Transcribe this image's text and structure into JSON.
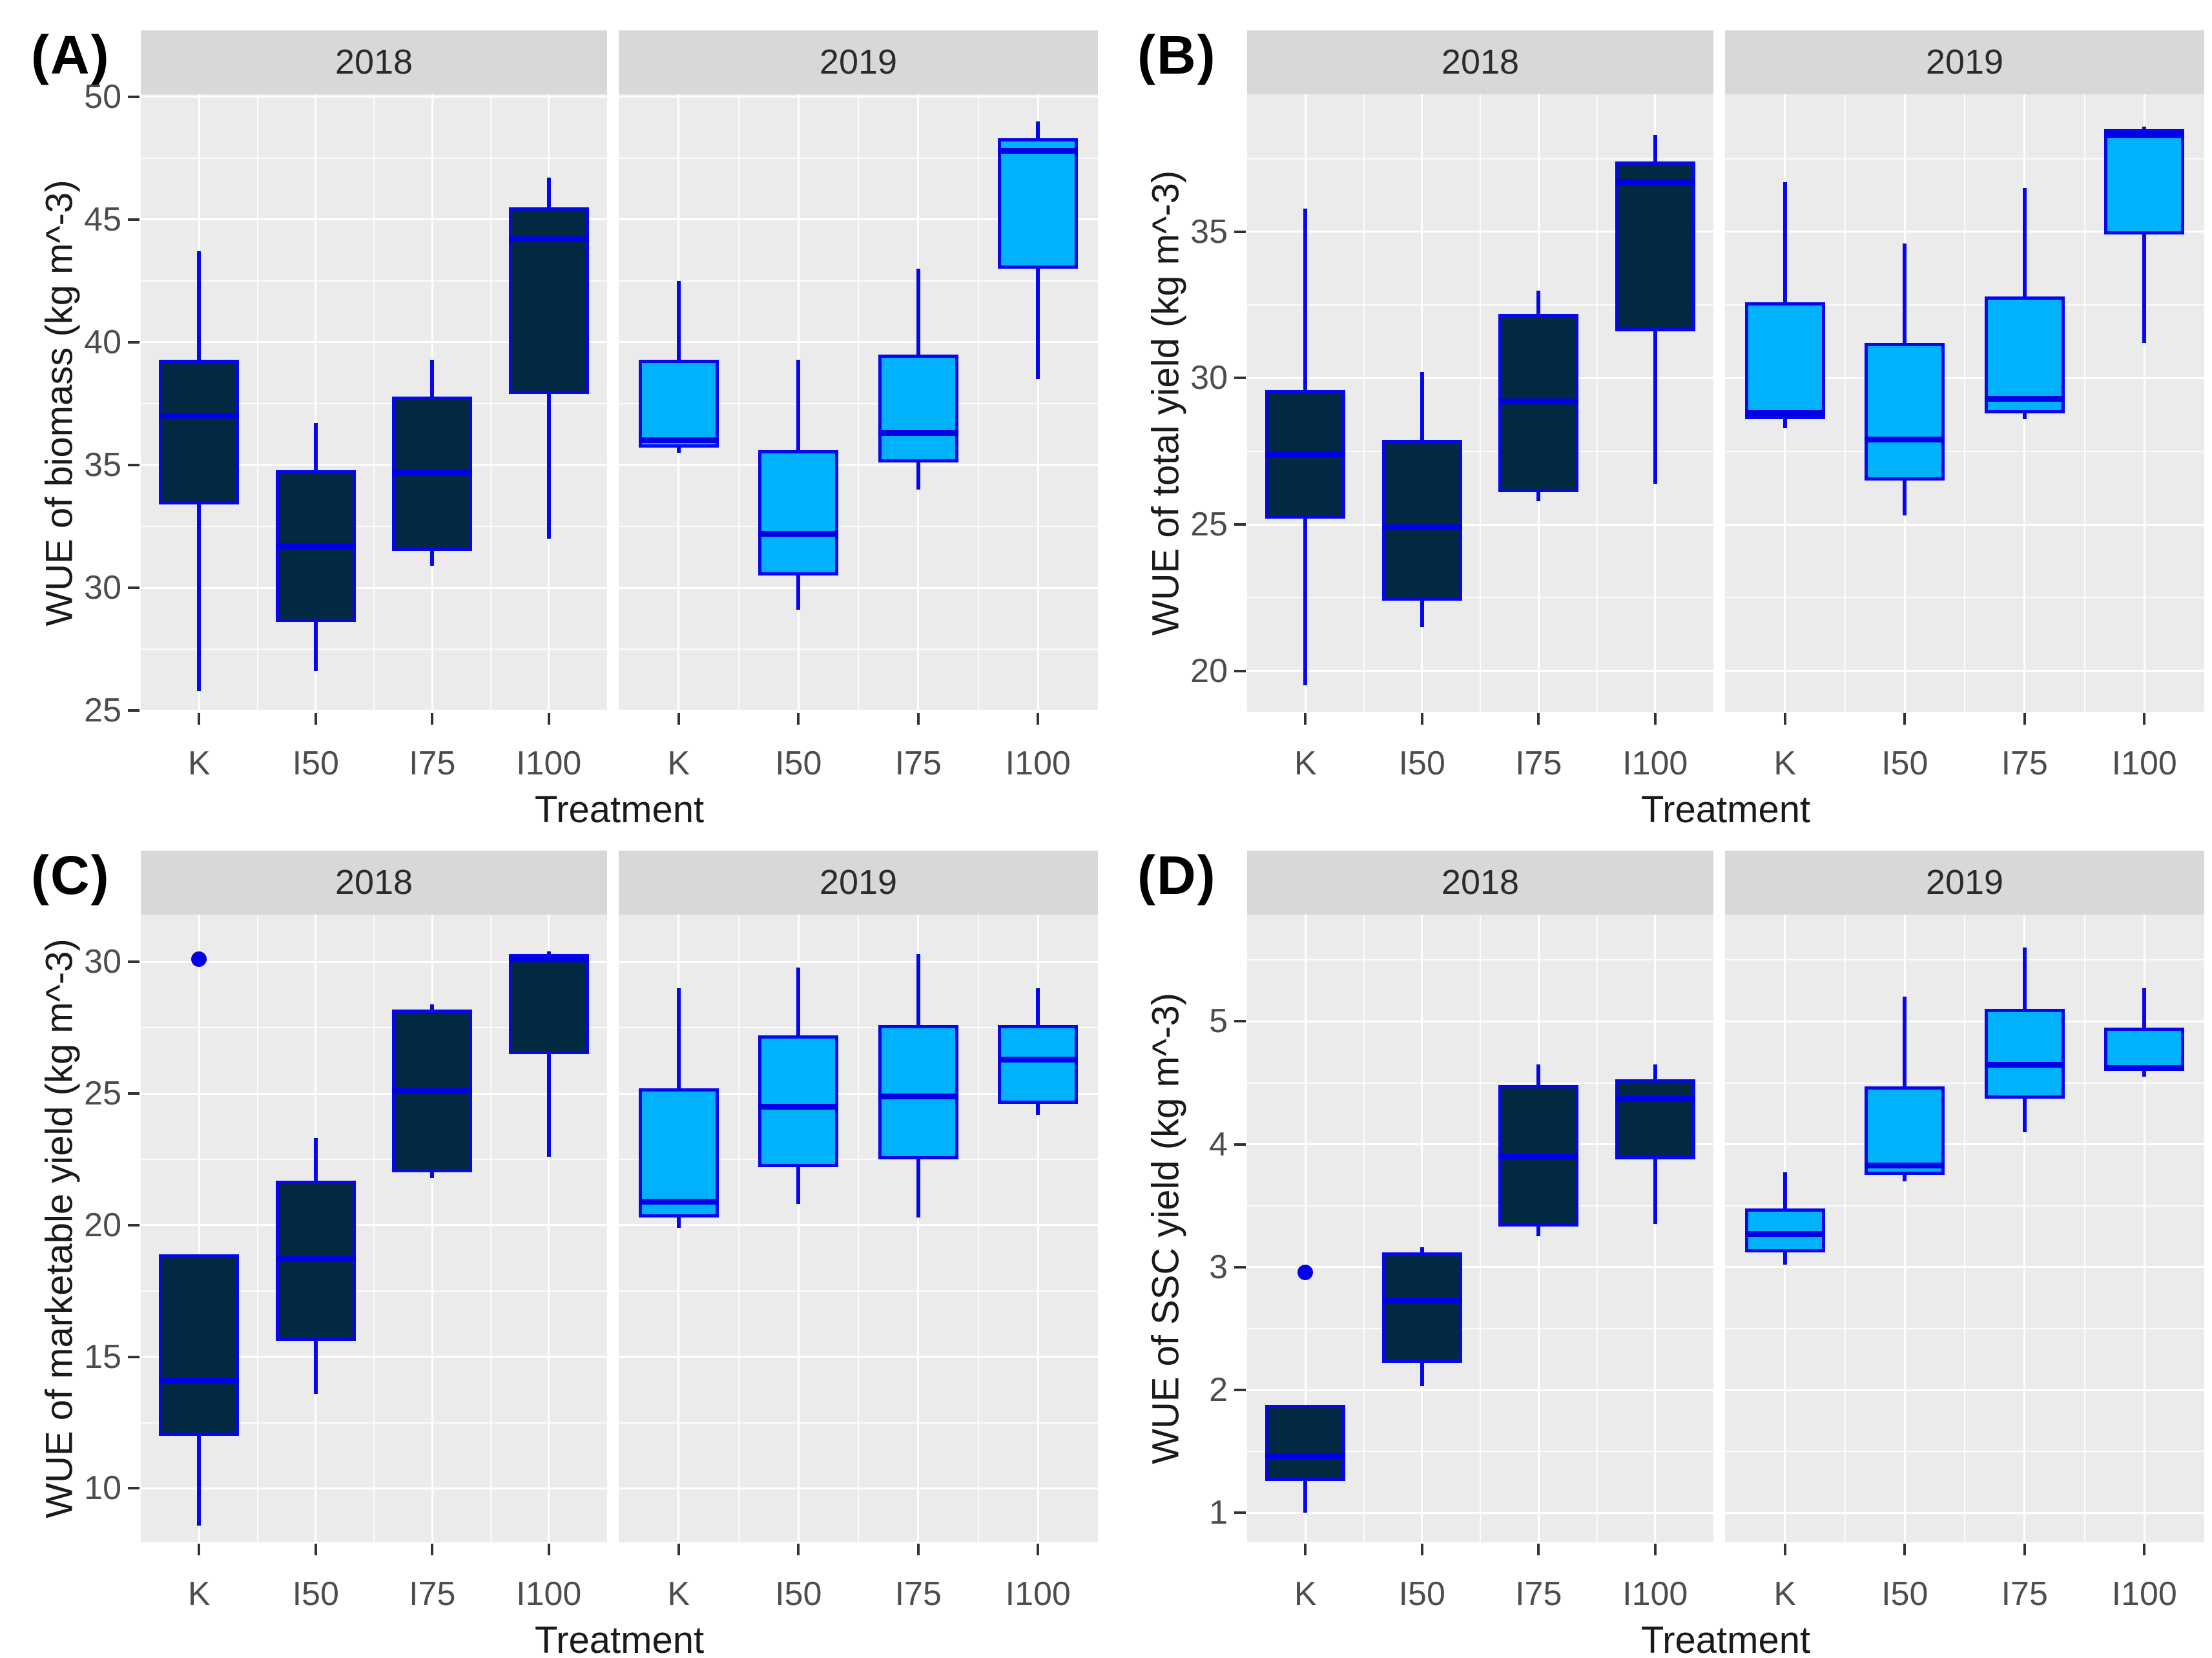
{
  "figure": {
    "x_axis_title": "Treatment",
    "facet_years": [
      "2018",
      "2019"
    ],
    "treatments": [
      "K",
      "I50",
      "I75",
      "I100"
    ]
  },
  "colors": {
    "fill_2018": "#012a42",
    "fill_2019": "#00b1fb",
    "box_border": "#0707ee",
    "median": "#0000e8",
    "outlier": "#0000e8",
    "panel_bg": "#ebebeb",
    "strip_bg": "#d8d8d8",
    "grid": "#ffffff"
  },
  "chart_data": [
    {
      "type": "boxplot",
      "letter": "(A)",
      "ylabel": "WUE of biomass (kg m^-3)",
      "xlabel": "Treatment",
      "yticks": [
        25,
        30,
        35,
        40,
        45,
        50
      ],
      "ylim": [
        24.95,
        50.1
      ],
      "categories": [
        "K",
        "I50",
        "I75",
        "I100"
      ],
      "facets": [
        {
          "year": "2018",
          "fill": "fill_2018",
          "boxes": [
            {
              "treatment": "K",
              "whisker_low": 25.8,
              "q1": 33.4,
              "median": 37.0,
              "q3": 39.3,
              "whisker_high": 43.7,
              "outliers": []
            },
            {
              "treatment": "I50",
              "whisker_low": 26.6,
              "q1": 28.6,
              "median": 31.7,
              "q3": 34.8,
              "whisker_high": 36.7,
              "outliers": []
            },
            {
              "treatment": "I75",
              "whisker_low": 30.9,
              "q1": 31.5,
              "median": 34.7,
              "q3": 37.8,
              "whisker_high": 39.3,
              "outliers": []
            },
            {
              "treatment": "I100",
              "whisker_low": 32.0,
              "q1": 37.9,
              "median": 44.2,
              "q3": 45.5,
              "whisker_high": 46.7,
              "outliers": []
            }
          ]
        },
        {
          "year": "2019",
          "fill": "fill_2019",
          "boxes": [
            {
              "treatment": "K",
              "whisker_low": 35.5,
              "q1": 35.7,
              "median": 36.0,
              "q3": 39.3,
              "whisker_high": 42.5,
              "outliers": []
            },
            {
              "treatment": "I50",
              "whisker_low": 29.1,
              "q1": 30.5,
              "median": 32.2,
              "q3": 35.6,
              "whisker_high": 39.3,
              "outliers": []
            },
            {
              "treatment": "I75",
              "whisker_low": 34.0,
              "q1": 35.1,
              "median": 36.3,
              "q3": 39.5,
              "whisker_high": 43.0,
              "outliers": []
            },
            {
              "treatment": "I100",
              "whisker_low": 38.5,
              "q1": 43.0,
              "median": 47.8,
              "q3": 48.3,
              "whisker_high": 49.0,
              "outliers": []
            }
          ]
        }
      ]
    },
    {
      "type": "boxplot",
      "letter": "(B)",
      "ylabel": "WUE of total yield (kg m^-3)",
      "xlabel": "Treatment",
      "yticks": [
        20,
        25,
        30,
        35
      ],
      "ylim": [
        18.6,
        39.7
      ],
      "categories": [
        "K",
        "I50",
        "I75",
        "I100"
      ],
      "facets": [
        {
          "year": "2018",
          "fill": "fill_2018",
          "boxes": [
            {
              "treatment": "K",
              "whisker_low": 19.5,
              "q1": 25.2,
              "median": 27.4,
              "q3": 29.6,
              "whisker_high": 35.8,
              "outliers": []
            },
            {
              "treatment": "I50",
              "whisker_low": 21.5,
              "q1": 22.4,
              "median": 24.9,
              "q3": 27.9,
              "whisker_high": 30.2,
              "outliers": []
            },
            {
              "treatment": "I75",
              "whisker_low": 25.8,
              "q1": 26.1,
              "median": 29.2,
              "q3": 32.2,
              "whisker_high": 33.0,
              "outliers": []
            },
            {
              "treatment": "I100",
              "whisker_low": 26.4,
              "q1": 31.6,
              "median": 36.7,
              "q3": 37.4,
              "whisker_high": 38.3,
              "outliers": []
            }
          ]
        },
        {
          "year": "2019",
          "fill": "fill_2019",
          "boxes": [
            {
              "treatment": "K",
              "whisker_low": 28.3,
              "q1": 28.6,
              "median": 28.8,
              "q3": 32.6,
              "whisker_high": 36.7,
              "outliers": []
            },
            {
              "treatment": "I50",
              "whisker_low": 25.3,
              "q1": 26.5,
              "median": 27.9,
              "q3": 31.2,
              "whisker_high": 34.6,
              "outliers": []
            },
            {
              "treatment": "I75",
              "whisker_low": 28.6,
              "q1": 28.8,
              "median": 29.3,
              "q3": 32.8,
              "whisker_high": 36.5,
              "outliers": []
            },
            {
              "treatment": "I100",
              "whisker_low": 31.2,
              "q1": 34.9,
              "median": 38.3,
              "q3": 38.5,
              "whisker_high": 38.6,
              "outliers": []
            }
          ]
        }
      ]
    },
    {
      "type": "boxplot",
      "letter": "(C)",
      "ylabel": "WUE of marketable yield (kg m^-3)",
      "xlabel": "Treatment",
      "yticks": [
        10,
        15,
        20,
        25,
        30
      ],
      "ylim": [
        7.95,
        31.8
      ],
      "categories": [
        "K",
        "I50",
        "I75",
        "I100"
      ],
      "facets": [
        {
          "year": "2018",
          "fill": "fill_2018",
          "boxes": [
            {
              "treatment": "K",
              "whisker_low": 8.6,
              "q1": 12.0,
              "median": 14.1,
              "q3": 18.9,
              "whisker_high": 18.9,
              "outliers": [
                30.1
              ]
            },
            {
              "treatment": "I50",
              "whisker_low": 13.6,
              "q1": 15.6,
              "median": 18.7,
              "q3": 21.7,
              "whisker_high": 23.3,
              "outliers": []
            },
            {
              "treatment": "I75",
              "whisker_low": 21.8,
              "q1": 22.0,
              "median": 25.1,
              "q3": 28.2,
              "whisker_high": 28.4,
              "outliers": []
            },
            {
              "treatment": "I100",
              "whisker_low": 22.6,
              "q1": 26.5,
              "median": 30.1,
              "q3": 30.3,
              "whisker_high": 30.4,
              "outliers": []
            }
          ]
        },
        {
          "year": "2019",
          "fill": "fill_2019",
          "boxes": [
            {
              "treatment": "K",
              "whisker_low": 19.9,
              "q1": 20.3,
              "median": 20.9,
              "q3": 25.2,
              "whisker_high": 29.0,
              "outliers": []
            },
            {
              "treatment": "I50",
              "whisker_low": 20.8,
              "q1": 22.2,
              "median": 24.5,
              "q3": 27.2,
              "whisker_high": 29.8,
              "outliers": []
            },
            {
              "treatment": "I75",
              "whisker_low": 20.3,
              "q1": 22.5,
              "median": 24.9,
              "q3": 27.6,
              "whisker_high": 30.3,
              "outliers": []
            },
            {
              "treatment": "I100",
              "whisker_low": 24.2,
              "q1": 24.6,
              "median": 26.3,
              "q3": 27.6,
              "whisker_high": 29.0,
              "outliers": []
            }
          ]
        }
      ]
    },
    {
      "type": "boxplot",
      "letter": "(D)",
      "ylabel": "WUE of SSC yield (kg m^-3)",
      "xlabel": "Treatment",
      "yticks": [
        1,
        2,
        3,
        4,
        5
      ],
      "ylim": [
        0.76,
        5.87
      ],
      "categories": [
        "K",
        "I50",
        "I75",
        "I100"
      ],
      "facets": [
        {
          "year": "2018",
          "fill": "fill_2018",
          "boxes": [
            {
              "treatment": "K",
              "whisker_low": 1.0,
              "q1": 1.26,
              "median": 1.46,
              "q3": 1.88,
              "whisker_high": 1.88,
              "outliers": [
                2.96
              ]
            },
            {
              "treatment": "I50",
              "whisker_low": 2.03,
              "q1": 2.22,
              "median": 2.73,
              "q3": 3.12,
              "whisker_high": 3.16,
              "outliers": []
            },
            {
              "treatment": "I75",
              "whisker_low": 3.25,
              "q1": 3.33,
              "median": 3.9,
              "q3": 4.48,
              "whisker_high": 4.65,
              "outliers": []
            },
            {
              "treatment": "I100",
              "whisker_low": 3.35,
              "q1": 3.88,
              "median": 4.37,
              "q3": 4.53,
              "whisker_high": 4.65,
              "outliers": []
            }
          ]
        },
        {
          "year": "2019",
          "fill": "fill_2019",
          "boxes": [
            {
              "treatment": "K",
              "whisker_low": 3.02,
              "q1": 3.12,
              "median": 3.27,
              "q3": 3.48,
              "whisker_high": 3.77,
              "outliers": []
            },
            {
              "treatment": "I50",
              "whisker_low": 3.7,
              "q1": 3.75,
              "median": 3.83,
              "q3": 4.47,
              "whisker_high": 5.2,
              "outliers": []
            },
            {
              "treatment": "I75",
              "whisker_low": 4.1,
              "q1": 4.37,
              "median": 4.65,
              "q3": 5.1,
              "whisker_high": 5.6,
              "outliers": []
            },
            {
              "treatment": "I100",
              "whisker_low": 4.55,
              "q1": 4.6,
              "median": 4.62,
              "q3": 4.95,
              "whisker_high": 5.27,
              "outliers": []
            }
          ]
        }
      ]
    }
  ]
}
